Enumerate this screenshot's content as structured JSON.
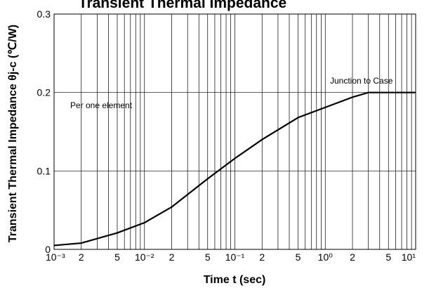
{
  "chart_data": {
    "type": "line",
    "title": "Transient Thermal Impedance",
    "ylabel": "Transient Thermal Impedance θj-c (℃/W)",
    "xlabel": "Time t (sec)",
    "xscale": "log",
    "xlim": [
      0.001,
      10
    ],
    "ylim": [
      0,
      0.3
    ],
    "xticks": [
      {
        "value": 0.001,
        "label": "10⁻³"
      },
      {
        "value": 0.002,
        "label": "2"
      },
      {
        "value": 0.005,
        "label": "5"
      },
      {
        "value": 0.01,
        "label": "10⁻²"
      },
      {
        "value": 0.02,
        "label": "2"
      },
      {
        "value": 0.05,
        "label": "5"
      },
      {
        "value": 0.1,
        "label": "10⁻¹"
      },
      {
        "value": 0.2,
        "label": "2"
      },
      {
        "value": 0.5,
        "label": "5"
      },
      {
        "value": 1,
        "label": "10⁰"
      },
      {
        "value": 2,
        "label": "2"
      },
      {
        "value": 5,
        "label": "5"
      },
      {
        "value": 10,
        "label": "10¹"
      }
    ],
    "xgrid": [
      0.003,
      0.004,
      0.006,
      0.007,
      0.008,
      0.009,
      0.03,
      0.04,
      0.06,
      0.07,
      0.08,
      0.09,
      0.3,
      0.4,
      0.6,
      0.7,
      0.8,
      0.9,
      3,
      4,
      6,
      7,
      8,
      9
    ],
    "yticks": [
      0,
      0.1,
      0.2,
      0.3
    ],
    "grid": true,
    "annotations": [
      {
        "text": "Per one element"
      },
      {
        "text": "Junction to Case"
      }
    ],
    "series": [
      {
        "color": "#000000",
        "x": [
          0.001,
          0.002,
          0.005,
          0.01,
          0.02,
          0.05,
          0.1,
          0.2,
          0.5,
          1,
          2,
          3,
          5,
          10
        ],
        "values": [
          0.005,
          0.008,
          0.021,
          0.034,
          0.054,
          0.09,
          0.116,
          0.14,
          0.168,
          0.181,
          0.194,
          0.2,
          0.2,
          0.2
        ]
      }
    ]
  }
}
